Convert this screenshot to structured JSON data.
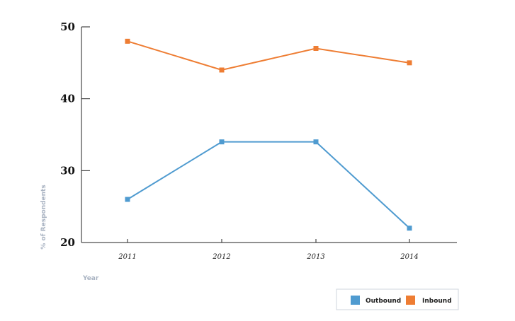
{
  "chart_data": {
    "type": "line",
    "x": [
      "2011",
      "2012",
      "2013",
      "2014"
    ],
    "series": [
      {
        "name": "Outbound",
        "values": [
          26,
          34,
          34,
          22
        ],
        "color": "#4f9bd0"
      },
      {
        "name": "Inbound",
        "values": [
          48,
          44,
          47,
          45
        ],
        "color": "#ee7d33"
      }
    ],
    "yticks": [
      20,
      30,
      40,
      50
    ],
    "ylim": [
      20,
      50
    ],
    "xlabel": "Year",
    "ylabel": "% of Respondents",
    "title": "",
    "grid": false,
    "legend_position": "bottom-right"
  }
}
